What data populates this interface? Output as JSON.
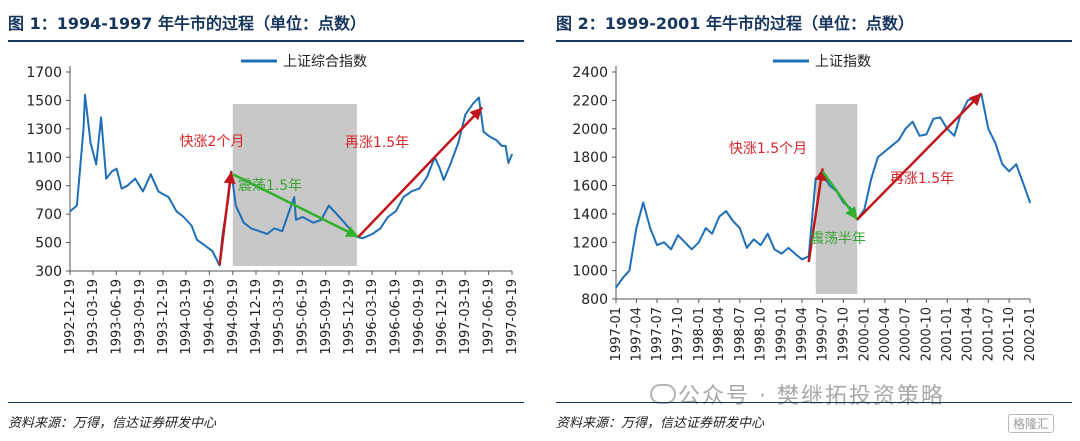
{
  "panels": {
    "left_title": "图 1：1994-1997 年牛市的过程（单位：点数）",
    "right_title": "图 2：1999-2001 年牛市的过程（单位：点数）",
    "left_source": "资料来源：万得，信达证券研发中心",
    "right_source": "资料来源：万得，信达证券研发中心"
  },
  "watermark": {
    "text": "公众号 · 樊继拓投资策略",
    "logo": "格隆汇"
  },
  "chart_data": [
    {
      "type": "line",
      "legend": "上证综合指数",
      "legend_position": "top-center",
      "ylim": [
        300,
        1700
      ],
      "yticks": [
        300,
        500,
        700,
        900,
        1100,
        1300,
        1500,
        1700
      ],
      "xticks": [
        "1992-12-19",
        "1993-03-19",
        "1993-06-19",
        "1993-09-19",
        "1993-12-19",
        "1994-03-19",
        "1994-06-19",
        "1994-09-19",
        "1994-12-19",
        "1995-03-19",
        "1995-06-19",
        "1995-09-19",
        "1995-12-19",
        "1996-03-19",
        "1996-06-19",
        "1996-09-19",
        "1996-12-19",
        "1997-03-19",
        "1997-06-19",
        "1997-09-19"
      ],
      "grid": false,
      "series": [
        {
          "name": "上证综合指数",
          "color": "#1f6fb7",
          "x": [
            "1992-12-19",
            "1993-01-15",
            "1993-02-10",
            "1993-02-16",
            "1993-03-10",
            "1993-04-01",
            "1993-04-20",
            "1993-05-10",
            "1993-06-01",
            "1993-06-20",
            "1993-07-10",
            "1993-08-01",
            "1993-09-01",
            "1993-10-01",
            "1993-11-01",
            "1993-12-01",
            "1993-12-20",
            "1994-01-10",
            "1994-02-10",
            "1994-03-10",
            "1994-04-10",
            "1994-05-01",
            "1994-06-01",
            "1994-07-01",
            "1994-07-29",
            "1994-08-10",
            "1994-09-01",
            "1994-09-13",
            "1994-10-01",
            "1994-11-01",
            "1994-12-01",
            "1995-01-01",
            "1995-02-01",
            "1995-03-01",
            "1995-04-01",
            "1995-05-18",
            "1995-05-25",
            "1995-06-20",
            "1995-08-01",
            "1995-09-01",
            "1995-10-01",
            "1995-11-01",
            "1995-12-01",
            "1996-01-19",
            "1996-02-10",
            "1996-03-20",
            "1996-04-20",
            "1996-05-20",
            "1996-06-20",
            "1996-07-20",
            "1996-08-20",
            "1996-09-20",
            "1996-10-20",
            "1996-11-20",
            "1996-12-10",
            "1996-12-25",
            "1997-01-20",
            "1997-02-20",
            "1997-03-20",
            "1997-04-20",
            "1997-05-12",
            "1997-05-30",
            "1997-06-20",
            "1997-07-20",
            "1997-08-10",
            "1997-08-25",
            "1997-09-05",
            "1997-09-19"
          ],
          "values": [
            720,
            760,
            1300,
            1540,
            1200,
            1050,
            1380,
            950,
            1000,
            1020,
            880,
            900,
            950,
            860,
            980,
            860,
            840,
            820,
            720,
            680,
            620,
            520,
            480,
            440,
            340,
            560,
            800,
            1000,
            760,
            640,
            600,
            580,
            560,
            600,
            580,
            820,
            660,
            680,
            640,
            660,
            760,
            700,
            640,
            540,
            530,
            560,
            600,
            680,
            720,
            820,
            860,
            880,
            960,
            1100,
            1020,
            940,
            1050,
            1200,
            1400,
            1480,
            1520,
            1280,
            1250,
            1220,
            1180,
            1180,
            1060,
            1120
          ]
        }
      ],
      "annotations": [
        {
          "text": "快涨2个月",
          "color": "#d9262b"
        },
        {
          "text": "震荡1.5年",
          "color": "#3aa535"
        },
        {
          "text": "再涨1.5年",
          "color": "#d9262b"
        }
      ],
      "shaded_range": [
        "1994-09-19",
        "1996-01-19"
      ]
    },
    {
      "type": "line",
      "legend": "上证指数",
      "legend_position": "top-center",
      "ylim": [
        800,
        2400
      ],
      "yticks": [
        800,
        1000,
        1200,
        1400,
        1600,
        1800,
        2000,
        2200,
        2400
      ],
      "xticks": [
        "1997-01",
        "1997-04",
        "1997-07",
        "1997-10",
        "1998-01",
        "1998-04",
        "1998-07",
        "1998-10",
        "1999-01",
        "1999-04",
        "1999-07",
        "1999-10",
        "2000-01",
        "2000-04",
        "2000-07",
        "2000-10",
        "2001-01",
        "2001-04",
        "2001-07",
        "2001-10",
        "2002-01"
      ],
      "grid": false,
      "series": [
        {
          "name": "上证指数",
          "color": "#1f6fb7",
          "x": [
            "1997-01",
            "1997-02",
            "1997-03",
            "1997-04",
            "1997-05",
            "1997-06",
            "1997-07",
            "1997-08",
            "1997-09",
            "1997-10",
            "1997-11",
            "1997-12",
            "1998-01",
            "1998-02",
            "1998-03",
            "1998-04",
            "1998-05",
            "1998-06",
            "1998-07",
            "1998-08",
            "1998-09",
            "1998-10",
            "1998-11",
            "1998-12",
            "1999-01",
            "1999-02",
            "1999-03",
            "1999-04",
            "1999-05",
            "1999-06",
            "1999-07",
            "1999-08",
            "1999-09",
            "1999-10",
            "1999-11",
            "1999-12",
            "2000-01",
            "2000-02",
            "2000-03",
            "2000-04",
            "2000-05",
            "2000-06",
            "2000-07",
            "2000-08",
            "2000-09",
            "2000-10",
            "2000-11",
            "2000-12",
            "2001-01",
            "2001-02",
            "2001-03",
            "2001-04",
            "2001-05",
            "2001-06",
            "2001-07",
            "2001-08",
            "2001-09",
            "2001-10",
            "2001-11",
            "2001-12",
            "2002-01"
          ],
          "values": [
            880,
            950,
            1000,
            1300,
            1480,
            1300,
            1180,
            1200,
            1150,
            1250,
            1200,
            1150,
            1200,
            1300,
            1260,
            1380,
            1420,
            1350,
            1300,
            1160,
            1220,
            1180,
            1260,
            1150,
            1120,
            1160,
            1120,
            1080,
            1100,
            1650,
            1680,
            1600,
            1560,
            1480,
            1440,
            1360,
            1430,
            1650,
            1800,
            1840,
            1880,
            1920,
            2000,
            2050,
            1950,
            1960,
            2070,
            2080,
            2000,
            1950,
            2100,
            2200,
            2220,
            2240,
            2000,
            1900,
            1750,
            1700,
            1750,
            1620,
            1480
          ]
        }
      ],
      "annotations": [
        {
          "text": "快涨1.5个月",
          "color": "#d9262b"
        },
        {
          "text": "震荡半年",
          "color": "#3aa535"
        },
        {
          "text": "再涨1.5年",
          "color": "#d9262b"
        }
      ],
      "shaded_range": [
        "1999-06",
        "1999-12"
      ]
    }
  ]
}
